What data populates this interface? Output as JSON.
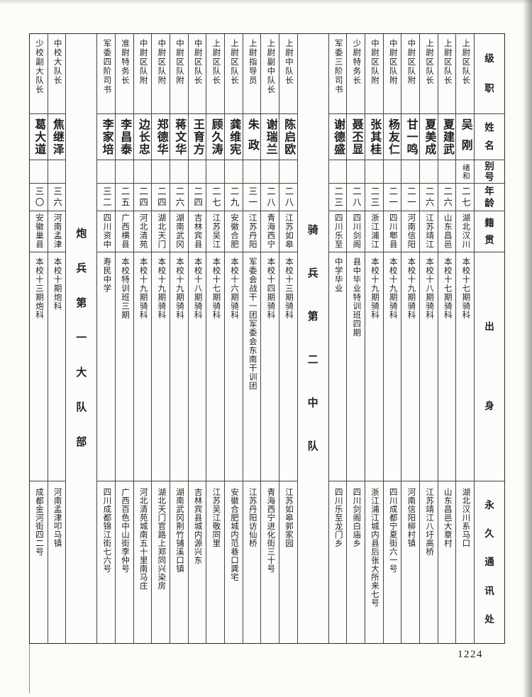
{
  "page": {
    "number": "1224"
  },
  "headers": {
    "rank": "级职",
    "name": "姓名",
    "alias": "别号",
    "age": "年龄",
    "native": "籍贯",
    "background": "出身",
    "address": "永久通讯处"
  },
  "sections": [
    {
      "type": "people",
      "entries": [
        {
          "name": "吴刚",
          "rank": "上尉区队长",
          "alias": "绪和",
          "age": "二七",
          "native": "湖北汉川",
          "background": "本校十七期骑科",
          "address": "湖北汉川系马口"
        },
        {
          "name": "夏建武",
          "rank": "上尉区队长",
          "alias": "",
          "age": "二六",
          "native": "山东昌邑",
          "background": "本校十七期骑科",
          "address": "山东昌邑大章村"
        },
        {
          "name": "夏美成",
          "rank": "上尉区队长",
          "alias": "",
          "age": "二六",
          "native": "江苏靖江",
          "background": "本校十八期骑科",
          "address": "江苏靖江八圩高桥"
        },
        {
          "name": "甘一鸣",
          "rank": "中尉区队附",
          "alias": "",
          "age": "二一",
          "native": "河南信阳",
          "background": "本校十九期骑科",
          "address": "河南信阳柳村镇"
        },
        {
          "name": "杨友仁",
          "rank": "中尉区队附",
          "alias": "",
          "age": "二一",
          "native": "四川郫县",
          "background": "本校十九期骑科",
          "address": "四川成都宁夏街六一号"
        },
        {
          "name": "张其桂",
          "rank": "中尉区队附",
          "alias": "",
          "age": "二三",
          "native": "浙江浦江",
          "background": "本校十九期骑科",
          "address": "浙江浦江城内县后张大所来七号"
        },
        {
          "name": "聂丕显",
          "rank": "少尉特务长",
          "alias": "",
          "age": "二八",
          "native": "四川剑阁",
          "background": "县中毕业特训班四期",
          "address": "四川剑阁白庙乡"
        },
        {
          "name": "谢德盛",
          "rank": "军委三阶司书",
          "alias": "",
          "age": "二三",
          "native": "四川乐至",
          "background": "中学毕业",
          "address": "四川乐至龙门乡"
        }
      ]
    },
    {
      "type": "divider",
      "title": "骑兵第二中队"
    },
    {
      "type": "people",
      "entries": [
        {
          "name": "陈启欧",
          "rank": "上尉中队长",
          "alias": "",
          "age": "二八",
          "native": "江苏如皋",
          "background": "本校十三期骑科",
          "address": "江苏如皋郭家园"
        },
        {
          "name": "谢瑞兰",
          "rank": "上尉副中队长",
          "alias": "",
          "age": "二八",
          "native": "青海西宁",
          "background": "本校十四期骑科",
          "address": "青海西宁进化街三十号"
        },
        {
          "name": "朱政",
          "rank": "上尉指导员",
          "alias": "",
          "age": "三一",
          "native": "江苏丹阳",
          "background": "军委会战干一团军委会东南干训团",
          "address": "江苏丹阳访仙桥"
        },
        {
          "name": "龚维宪",
          "rank": "上尉区队长",
          "alias": "",
          "age": "二九",
          "native": "安徽合肥",
          "background": "本校十六期骑科",
          "address": "安徽合肥城内范巷口龚宅"
        },
        {
          "name": "顾久涛",
          "rank": "上尉区队长",
          "alias": "",
          "age": "二七",
          "native": "江苏吴江",
          "background": "本校十七期骑科",
          "address": "江苏吴江敬同里"
        },
        {
          "name": "王育方",
          "rank": "中尉区队长",
          "alias": "",
          "age": "二四",
          "native": "吉林宾县",
          "background": "本校十八期骑科",
          "address": "吉林宾县城内源兴东"
        },
        {
          "name": "蒋文华",
          "rank": "中尉区队附",
          "alias": "",
          "age": "二六",
          "native": "湖南武冈",
          "background": "本校十九期骑科",
          "address": "湖南武冈荆竹铺溪口镇"
        },
        {
          "name": "郑德华",
          "rank": "中尉区队附",
          "alias": "",
          "age": "二四",
          "native": "湖北天门",
          "background": "本校十九期骑科",
          "address": "湖北天门官路上郑同兴染房"
        },
        {
          "name": "边长忠",
          "rank": "中尉区队附",
          "alias": "",
          "age": "二四",
          "native": "河北清苑",
          "background": "本校十九期骑科",
          "address": "河北清苑城南五十里南马庄"
        },
        {
          "name": "李昌泰",
          "rank": "准尉特务长",
          "alias": "",
          "age": "二五",
          "native": "广西横县",
          "background": "本校特训班三期",
          "address": "广西百色中山街李仲号"
        },
        {
          "name": "李家培",
          "rank": "军委四阶司书",
          "alias": "",
          "age": "三二",
          "native": "四川资中",
          "background": "寿民中学",
          "address": "四川成都锦江街七六号"
        }
      ]
    },
    {
      "type": "divider",
      "title": "炮兵第一大队部"
    },
    {
      "type": "people",
      "entries": [
        {
          "name": "焦继泽",
          "rank": "中校大队长",
          "alias": "",
          "age": "三六",
          "native": "河南孟津",
          "background": "本校十期炮科",
          "address": "河南孟津叩马镇"
        },
        {
          "name": "葛大道",
          "rank": "少校副大队长",
          "alias": "",
          "age": "三〇",
          "native": "安徽巢县",
          "background": "本校十三期炮科",
          "address": "成都金河街四二号"
        }
      ]
    }
  ]
}
